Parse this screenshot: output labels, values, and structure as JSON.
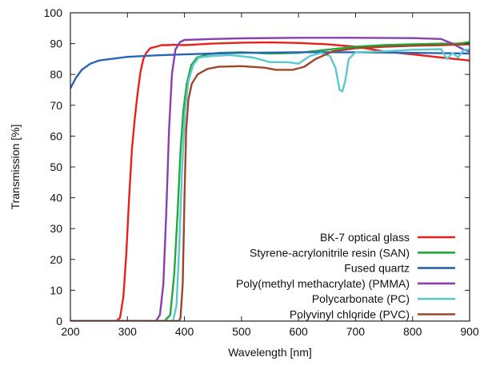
{
  "chart_data": {
    "type": "line",
    "title": "",
    "xlabel": "Wavelength [nm]",
    "ylabel": "Transmission [%]",
    "xlim": [
      200,
      900
    ],
    "ylim": [
      0,
      100
    ],
    "x_ticks": [
      "200",
      "300",
      "400",
      "500",
      "600",
      "700",
      "800",
      "900"
    ],
    "y_ticks": [
      "0",
      "10",
      "20",
      "30",
      "40",
      "50",
      "60",
      "70",
      "80",
      "90",
      "100"
    ],
    "grid": false,
    "legend_position": "bottom-right",
    "series": [
      {
        "name": "BK-7 optical glass",
        "color": "#e8221b",
        "points": [
          [
            200,
            0
          ],
          [
            280,
            0
          ],
          [
            287,
            1
          ],
          [
            293,
            8
          ],
          [
            298,
            22
          ],
          [
            303,
            40
          ],
          [
            308,
            56
          ],
          [
            313,
            66
          ],
          [
            318,
            74
          ],
          [
            323,
            81
          ],
          [
            328,
            85
          ],
          [
            333,
            87
          ],
          [
            340,
            88.5
          ],
          [
            350,
            89
          ],
          [
            360,
            89.5
          ],
          [
            370,
            89.5
          ],
          [
            380,
            89.6
          ],
          [
            400,
            89.5
          ],
          [
            450,
            90
          ],
          [
            500,
            90.3
          ],
          [
            550,
            90.4
          ],
          [
            600,
            90.2
          ],
          [
            650,
            89.8
          ],
          [
            700,
            89
          ],
          [
            750,
            87.5
          ],
          [
            800,
            86.5
          ],
          [
            850,
            85.5
          ],
          [
            900,
            84.5
          ]
        ]
      },
      {
        "name": "Styrene-acrylonitrile resin (SAN)",
        "color": "#1faa3a",
        "points": [
          [
            200,
            0
          ],
          [
            365,
            0
          ],
          [
            375,
            2
          ],
          [
            382,
            15
          ],
          [
            388,
            35
          ],
          [
            393,
            55
          ],
          [
            398,
            68
          ],
          [
            404,
            77
          ],
          [
            412,
            83
          ],
          [
            422,
            85.5
          ],
          [
            440,
            86.5
          ],
          [
            460,
            87
          ],
          [
            500,
            87.2
          ],
          [
            550,
            86.8
          ],
          [
            600,
            87
          ],
          [
            650,
            88
          ],
          [
            700,
            89
          ],
          [
            750,
            89.5
          ],
          [
            800,
            89.8
          ],
          [
            850,
            90
          ],
          [
            880,
            90
          ],
          [
            900,
            90.5
          ]
        ]
      },
      {
        "name": "Fused quartz",
        "color": "#2a64b5",
        "points": [
          [
            200,
            75.5
          ],
          [
            210,
            79
          ],
          [
            220,
            81.5
          ],
          [
            235,
            83.5
          ],
          [
            250,
            84.5
          ],
          [
            270,
            85
          ],
          [
            300,
            85.7
          ],
          [
            350,
            86.2
          ],
          [
            400,
            86.5
          ],
          [
            450,
            86.8
          ],
          [
            500,
            87
          ],
          [
            550,
            87.1
          ],
          [
            600,
            87.2
          ],
          [
            650,
            87.2
          ],
          [
            700,
            87.2
          ],
          [
            750,
            87.1
          ],
          [
            800,
            87
          ],
          [
            850,
            86.9
          ],
          [
            900,
            86.8
          ]
        ]
      },
      {
        "name": "Poly(methyl methacrylate) (PMMA)",
        "color": "#8a3fb0",
        "points": [
          [
            200,
            0
          ],
          [
            350,
            0
          ],
          [
            357,
            2
          ],
          [
            363,
            12
          ],
          [
            368,
            35
          ],
          [
            373,
            62
          ],
          [
            378,
            80
          ],
          [
            384,
            88
          ],
          [
            392,
            90.5
          ],
          [
            400,
            91.2
          ],
          [
            450,
            91.5
          ],
          [
            500,
            91.7
          ],
          [
            600,
            91.9
          ],
          [
            700,
            91.9
          ],
          [
            800,
            91.8
          ],
          [
            850,
            91.5
          ],
          [
            870,
            90
          ],
          [
            890,
            88
          ],
          [
            900,
            87.5
          ]
        ]
      },
      {
        "name": "Polycarbonate (PC)",
        "color": "#5cc8cf",
        "points": [
          [
            200,
            0
          ],
          [
            380,
            0
          ],
          [
            386,
            5
          ],
          [
            391,
            25
          ],
          [
            396,
            50
          ],
          [
            401,
            68
          ],
          [
            407,
            78
          ],
          [
            415,
            83
          ],
          [
            425,
            85.5
          ],
          [
            450,
            86
          ],
          [
            480,
            86.3
          ],
          [
            520,
            85.5
          ],
          [
            550,
            84
          ],
          [
            580,
            84
          ],
          [
            600,
            83.5
          ],
          [
            620,
            86
          ],
          [
            640,
            87
          ],
          [
            655,
            86
          ],
          [
            665,
            82
          ],
          [
            672,
            75
          ],
          [
            677,
            74.5
          ],
          [
            682,
            78
          ],
          [
            688,
            85
          ],
          [
            700,
            87.2
          ],
          [
            750,
            87.5
          ],
          [
            800,
            88
          ],
          [
            850,
            88.2
          ],
          [
            860,
            85
          ],
          [
            870,
            87
          ],
          [
            880,
            85.5
          ],
          [
            890,
            88
          ],
          [
            900,
            88
          ]
        ]
      },
      {
        "name": "Polyvinyl chloride (PVC)",
        "color": "#a0452a",
        "points": [
          [
            200,
            0
          ],
          [
            390,
            0
          ],
          [
            393,
            1
          ],
          [
            397,
            12
          ],
          [
            400,
            40
          ],
          [
            403,
            62
          ],
          [
            407,
            72
          ],
          [
            413,
            77
          ],
          [
            423,
            80
          ],
          [
            440,
            81.8
          ],
          [
            460,
            82.5
          ],
          [
            500,
            82.7
          ],
          [
            540,
            82.2
          ],
          [
            560,
            81.5
          ],
          [
            590,
            81.5
          ],
          [
            610,
            82.5
          ],
          [
            630,
            85
          ],
          [
            660,
            87.5
          ],
          [
            700,
            88.5
          ],
          [
            750,
            89
          ],
          [
            800,
            89.3
          ],
          [
            850,
            89.5
          ],
          [
            900,
            89.8
          ]
        ]
      }
    ]
  }
}
